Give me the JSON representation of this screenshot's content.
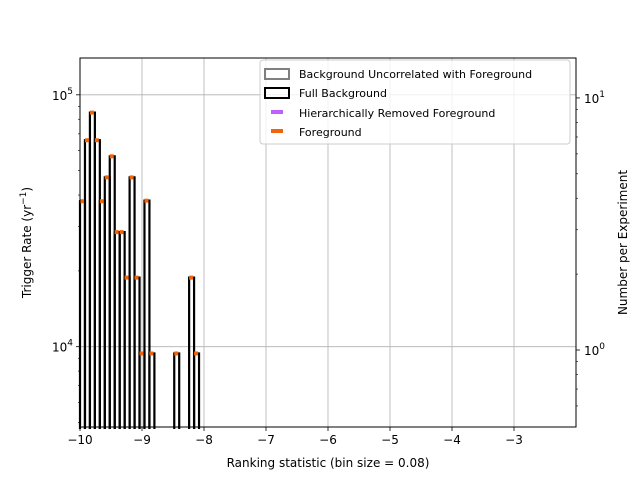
{
  "chart_data": {
    "type": "step-histogram",
    "xlabel": "Ranking statistic (bin size = 0.08)",
    "ylabel": "Trigger Rate (yr$^{-1}$)",
    "ylabel_parts": [
      "Trigger Rate (yr",
      "−1",
      ")"
    ],
    "y2label": "Number per Experiment",
    "xlim": [
      -10,
      -2.0
    ],
    "ylim": [
      4800,
      140000
    ],
    "yscale": "log",
    "y2lim": [
      0.495,
      14.4
    ],
    "y2scale": "log",
    "grid": true,
    "x_ticks": [
      -10,
      -9,
      -8,
      -7,
      -6,
      -5,
      -4,
      -3
    ],
    "x_tick_labels": [
      "−10",
      "−9",
      "−8",
      "−7",
      "−6",
      "−5",
      "−4",
      "−3"
    ],
    "y_ticks": [
      {
        "value": 100000,
        "base": "10",
        "exp": "5"
      },
      {
        "value": 10000,
        "base": "10",
        "exp": "4"
      }
    ],
    "y2_ticks": [
      {
        "value": 10,
        "base": "10",
        "exp": "1"
      },
      {
        "value": 1,
        "base": "10",
        "exp": "0"
      }
    ],
    "legend_position": "top-right",
    "legend": [
      {
        "label": "Background Uncorrelated with Foreground",
        "style": "hollow",
        "color": "#808080"
      },
      {
        "label": "Full Background",
        "style": "hollow",
        "color": "#000000"
      },
      {
        "label": "Hierarchically Removed Foreground",
        "style": "dash",
        "color": "#bf5fff"
      },
      {
        "label": "Foreground",
        "style": "dash",
        "color": "#f0650a"
      }
    ],
    "series": [
      {
        "name": "Full Background",
        "color": "#000000",
        "bins": [
          {
            "x0": -10.0,
            "x1": -9.92,
            "y": 37800
          },
          {
            "x0": -9.92,
            "x1": -9.84,
            "y": 66000
          },
          {
            "x0": -9.84,
            "x1": -9.76,
            "y": 85000
          },
          {
            "x0": -9.76,
            "x1": -9.68,
            "y": 66000
          },
          {
            "x0": -9.68,
            "x1": -9.6,
            "y": 37800
          },
          {
            "x0": -9.6,
            "x1": -9.52,
            "y": 47000
          },
          {
            "x0": -9.52,
            "x1": -9.44,
            "y": 57000
          },
          {
            "x0": -9.44,
            "x1": -9.36,
            "y": 28500
          },
          {
            "x0": -9.36,
            "x1": -9.28,
            "y": 28500
          },
          {
            "x0": -9.28,
            "x1": -9.2,
            "y": 18800
          },
          {
            "x0": -9.2,
            "x1": -9.12,
            "y": 47000
          },
          {
            "x0": -9.12,
            "x1": -9.04,
            "y": 18800
          },
          {
            "x0": -9.04,
            "x1": -8.96,
            "y": 9400
          },
          {
            "x0": -8.96,
            "x1": -8.88,
            "y": 38000
          },
          {
            "x0": -8.88,
            "x1": -8.8,
            "y": 9400
          },
          {
            "x0": -8.48,
            "x1": -8.4,
            "y": 9400
          },
          {
            "x0": -8.24,
            "x1": -8.16,
            "y": 18800
          },
          {
            "x0": -8.16,
            "x1": -8.08,
            "y": 9400
          }
        ]
      },
      {
        "name": "Foreground",
        "color": "#f0650a",
        "bins": [
          {
            "x0": -10.0,
            "x1": -9.92,
            "y": 37800
          },
          {
            "x0": -9.92,
            "x1": -9.84,
            "y": 66000
          },
          {
            "x0": -9.84,
            "x1": -9.76,
            "y": 85000
          },
          {
            "x0": -9.76,
            "x1": -9.68,
            "y": 66000
          },
          {
            "x0": -9.68,
            "x1": -9.6,
            "y": 37800
          },
          {
            "x0": -9.6,
            "x1": -9.52,
            "y": 47000
          },
          {
            "x0": -9.52,
            "x1": -9.44,
            "y": 57000
          },
          {
            "x0": -9.44,
            "x1": -9.36,
            "y": 28500
          },
          {
            "x0": -9.36,
            "x1": -9.28,
            "y": 28500
          },
          {
            "x0": -9.28,
            "x1": -9.2,
            "y": 18800
          },
          {
            "x0": -9.2,
            "x1": -9.12,
            "y": 47000
          },
          {
            "x0": -9.12,
            "x1": -9.04,
            "y": 18800
          },
          {
            "x0": -9.04,
            "x1": -8.96,
            "y": 9400
          },
          {
            "x0": -8.96,
            "x1": -8.88,
            "y": 38000
          },
          {
            "x0": -8.88,
            "x1": -8.8,
            "y": 9400
          },
          {
            "x0": -8.48,
            "x1": -8.4,
            "y": 9400
          },
          {
            "x0": -8.24,
            "x1": -8.16,
            "y": 18800
          },
          {
            "x0": -8.16,
            "x1": -8.08,
            "y": 9400
          }
        ]
      }
    ]
  }
}
